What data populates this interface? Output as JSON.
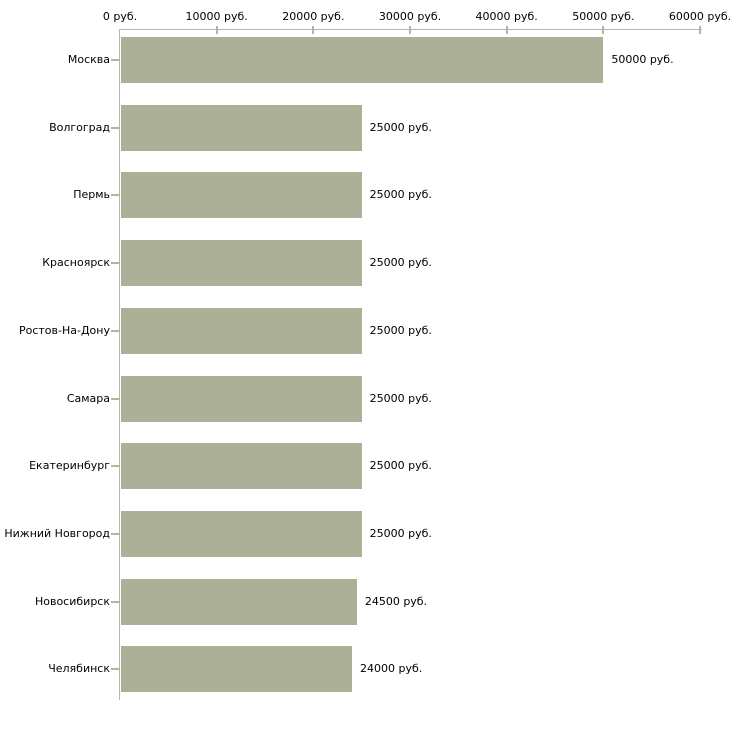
{
  "chart_data": {
    "type": "bar",
    "orientation": "horizontal",
    "title": "",
    "categories": [
      "Москва",
      "Волгоград",
      "Пермь",
      "Красноярск",
      "Ростов-На-Дону",
      "Самара",
      "Екатеринбург",
      "Нижний Новгород",
      "Новосибирск",
      "Челябинск"
    ],
    "values": [
      50000,
      25000,
      25000,
      25000,
      25000,
      25000,
      25000,
      25000,
      24500,
      24000
    ],
    "value_labels": [
      "50000 руб.",
      "25000 руб.",
      "25000 руб.",
      "25000 руб.",
      "25000 руб.",
      "25000 руб.",
      "25000 руб.",
      "25000 руб.",
      "24500 руб.",
      "24000 руб."
    ],
    "x_axis": {
      "position": "top",
      "min": 0,
      "max": 60000,
      "ticks": [
        0,
        10000,
        20000,
        30000,
        40000,
        50000,
        60000
      ],
      "tick_labels": [
        "0 руб.",
        "10000 руб.",
        "20000 руб.",
        "30000 руб.",
        "40000 руб.",
        "50000 руб.",
        "60000 руб."
      ]
    },
    "grid": false,
    "legend": false,
    "colors": {
      "bar": "#abb096",
      "axis_line": "#b4b4b4",
      "tick_mark": "#b6b695",
      "text": "#000000",
      "background": "#ffffff"
    }
  }
}
